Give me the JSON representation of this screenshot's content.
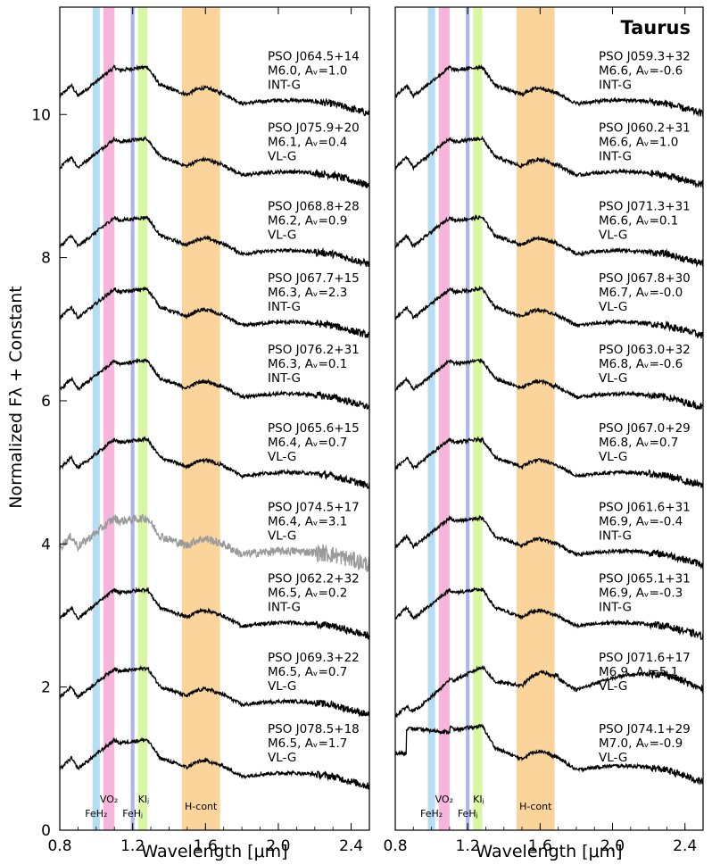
{
  "chart_data": [
    {
      "type": "line",
      "panel": "left",
      "title": "",
      "xlabel": "Wavelength [μm]",
      "ylabel": "Normalized Fλ + Constant",
      "xlim": [
        0.8,
        2.5
      ],
      "ylim": [
        0,
        11.5
      ],
      "xticks": [
        "0.8",
        "1.2",
        "1.6",
        "2.0",
        "2.4"
      ],
      "yticks": [
        "0",
        "2",
        "4",
        "6",
        "8",
        "10"
      ],
      "xtick_values": [
        0.8,
        1.2,
        1.6,
        2.0,
        2.4
      ],
      "ytick_values": [
        0,
        2,
        4,
        6,
        8,
        10
      ],
      "bands": [
        {
          "name": "FeHz",
          "label": "FeH₂",
          "x0": 0.98,
          "x1": 1.02,
          "color": "#b5def3"
        },
        {
          "name": "VOz",
          "label": "VO₂",
          "x0": 1.04,
          "x1": 1.1,
          "color": "#f7b5dc"
        },
        {
          "name": "FeHJ",
          "label": "FeHⱼ",
          "x0": 1.19,
          "x1": 1.21,
          "color": "#a9b5ee"
        },
        {
          "name": "KIJ",
          "label": "KIⱼ",
          "x0": 1.23,
          "x1": 1.28,
          "color": "#d8f7a3"
        },
        {
          "name": "H-cont",
          "label": "H-cont",
          "x0": 1.47,
          "x1": 1.68,
          "color": "#fad49a"
        }
      ],
      "series": [
        {
          "name": "PSO J064.5+14",
          "spt": "M6.0",
          "av": "Aᵥ=1.0",
          "grav": "INT-G",
          "offset": 9.7,
          "color": "#000000"
        },
        {
          "name": "PSO J075.9+20",
          "spt": "M6.1",
          "av": "Aᵥ=0.4",
          "grav": "VL-G",
          "offset": 8.7,
          "color": "#000000"
        },
        {
          "name": "PSO J068.8+28",
          "spt": "M6.2",
          "av": "Aᵥ=0.9",
          "grav": "VL-G",
          "offset": 7.6,
          "color": "#000000"
        },
        {
          "name": "PSO J067.7+15",
          "spt": "M6.3",
          "av": "Aᵥ=2.3",
          "grav": "INT-G",
          "offset": 6.6,
          "color": "#000000"
        },
        {
          "name": "PSO J076.2+31",
          "spt": "M6.3",
          "av": "Aᵥ=0.1",
          "grav": "INT-G",
          "offset": 5.6,
          "color": "#000000"
        },
        {
          "name": "PSO J065.6+15",
          "spt": "M6.4",
          "av": "Aᵥ=0.7",
          "grav": "VL-G",
          "offset": 4.5,
          "color": "#000000"
        },
        {
          "name": "PSO J074.5+17",
          "spt": "M6.4",
          "av": "Aᵥ=3.1",
          "grav": "VL-G",
          "offset": 3.4,
          "color": "#9a9a9a"
        },
        {
          "name": "PSO J062.2+32",
          "spt": "M6.5",
          "av": "Aᵥ=0.2",
          "grav": "INT-G",
          "offset": 2.4,
          "color": "#000000"
        },
        {
          "name": "PSO J069.3+22",
          "spt": "M6.5",
          "av": "Aᵥ=0.7",
          "grav": "VL-G",
          "offset": 1.3,
          "color": "#000000"
        },
        {
          "name": "PSO J078.5+18",
          "spt": "M6.5",
          "av": "Aᵥ=1.7",
          "grav": "VL-G",
          "offset": 0.3,
          "color": "#000000"
        }
      ]
    },
    {
      "type": "line",
      "panel": "right",
      "title": "Taurus",
      "xlabel": "Wavelength [μm]",
      "ylabel": "",
      "xlim": [
        0.8,
        2.5
      ],
      "ylim": [
        0,
        11.5
      ],
      "xticks": [
        "0.8",
        "1.2",
        "1.6",
        "2.0",
        "2.4"
      ],
      "xtick_values": [
        0.8,
        1.2,
        1.6,
        2.0,
        2.4
      ],
      "yticks": [],
      "ytick_values": [],
      "bands": [
        {
          "name": "FeHz",
          "label": "FeH₂",
          "x0": 0.98,
          "x1": 1.02,
          "color": "#b5def3"
        },
        {
          "name": "VOz",
          "label": "VO₂",
          "x0": 1.04,
          "x1": 1.1,
          "color": "#f7b5dc"
        },
        {
          "name": "FeHJ",
          "label": "FeHⱼ",
          "x0": 1.19,
          "x1": 1.21,
          "color": "#a9b5ee"
        },
        {
          "name": "KIJ",
          "label": "KIⱼ",
          "x0": 1.23,
          "x1": 1.28,
          "color": "#d8f7a3"
        },
        {
          "name": "H-cont",
          "label": "H-cont",
          "x0": 1.47,
          "x1": 1.68,
          "color": "#fad49a"
        }
      ],
      "series": [
        {
          "name": "PSO J059.3+32",
          "spt": "M6.6",
          "av": "Aᵥ=-0.6",
          "grav": "INT-G",
          "offset": 9.7,
          "color": "#000000"
        },
        {
          "name": "PSO J060.2+31",
          "spt": "M6.6",
          "av": "Aᵥ=1.0",
          "grav": "INT-G",
          "offset": 8.7,
          "color": "#000000"
        },
        {
          "name": "PSO J071.3+31",
          "spt": "M6.6",
          "av": "Aᵥ=0.1",
          "grav": "VL-G",
          "offset": 7.6,
          "color": "#000000"
        },
        {
          "name": "PSO J067.8+30",
          "spt": "M6.7",
          "av": "Aᵥ=-0.0",
          "grav": "VL-G",
          "offset": 6.6,
          "color": "#000000"
        },
        {
          "name": "PSO J063.0+32",
          "spt": "M6.8",
          "av": "Aᵥ=-0.6",
          "grav": "VL-G",
          "offset": 5.6,
          "color": "#000000"
        },
        {
          "name": "PSO J067.0+29",
          "spt": "M6.8",
          "av": "Aᵥ=0.7",
          "grav": "VL-G",
          "offset": 4.5,
          "color": "#000000"
        },
        {
          "name": "PSO J061.6+31",
          "spt": "M6.9",
          "av": "Aᵥ=-0.4",
          "grav": "INT-G",
          "offset": 3.4,
          "color": "#000000"
        },
        {
          "name": "PSO J065.1+31",
          "spt": "M6.9",
          "av": "Aᵥ=-0.3",
          "grav": "INT-G",
          "offset": 2.4,
          "color": "#000000"
        },
        {
          "name": "PSO J071.6+17",
          "spt": "M6.9",
          "av": "Aᵥ=5.1",
          "grav": "VL-G",
          "offset": 1.3,
          "color": "#000000"
        },
        {
          "name": "PSO J074.1+29",
          "spt": "M7.0",
          "av": "Aᵥ=-0.9",
          "grav": "VL-G",
          "offset": 0.3,
          "color": "#000000"
        }
      ]
    }
  ]
}
